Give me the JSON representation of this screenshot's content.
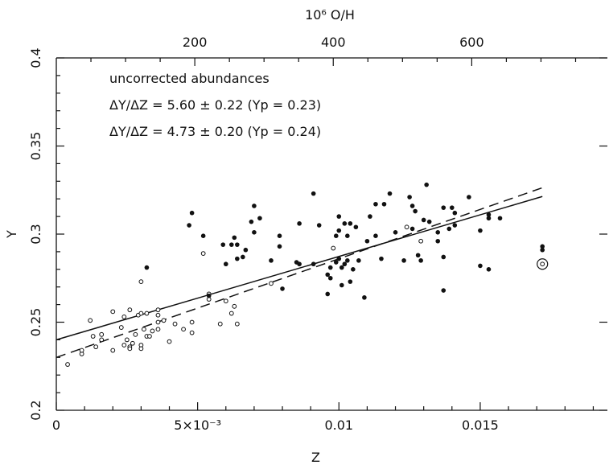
{
  "chart_data": {
    "type": "scatter",
    "xlabel": "Z",
    "ylabel": "Y",
    "top_xlabel": "10⁶ O/H",
    "xlim": [
      0,
      0.0195
    ],
    "ylim": [
      0.2,
      0.4
    ],
    "x_ticks": [
      {
        "value": 0,
        "label": "0"
      },
      {
        "value": 0.005,
        "label": "5×10⁻³"
      },
      {
        "value": 0.01,
        "label": "0.01"
      },
      {
        "value": 0.015,
        "label": "0.015"
      }
    ],
    "y_ticks": [
      {
        "value": 0.2,
        "label": "0.2"
      },
      {
        "value": 0.25,
        "label": "0.25"
      },
      {
        "value": 0.3,
        "label": "0.3"
      },
      {
        "value": 0.35,
        "label": "0.35"
      },
      {
        "value": 0.4,
        "label": "0.4"
      }
    ],
    "top_ticks": [
      {
        "value": 200,
        "label": "200"
      },
      {
        "value": 400,
        "label": "400"
      },
      {
        "value": 600,
        "label": "600"
      }
    ],
    "top_axis_z_per_unit": 2.45e-05,
    "annotations": [
      "uncorrected abundances",
      "ΔY/ΔZ = 5.60 ± 0.22  (Yp = 0.23)",
      "ΔY/ΔZ = 4.73 ± 0.20  (Yp = 0.24)"
    ],
    "fits": [
      {
        "style": "dashed",
        "slope": 5.6,
        "intercept": 0.23,
        "x_range": [
          0,
          0.0172
        ]
      },
      {
        "style": "solid",
        "slope": 4.73,
        "intercept": 0.24,
        "x_range": [
          0,
          0.0172
        ]
      }
    ],
    "series": [
      {
        "marker": "open-circle",
        "points": [
          [
            0.0004,
            0.226
          ],
          [
            0.0009,
            0.232
          ],
          [
            0.0009,
            0.234
          ],
          [
            0.0012,
            0.251
          ],
          [
            0.0013,
            0.242
          ],
          [
            0.0014,
            0.236
          ],
          [
            0.0016,
            0.24
          ],
          [
            0.0016,
            0.243
          ],
          [
            0.002,
            0.234
          ],
          [
            0.002,
            0.256
          ],
          [
            0.0023,
            0.247
          ],
          [
            0.0024,
            0.237
          ],
          [
            0.0024,
            0.253
          ],
          [
            0.0025,
            0.24
          ],
          [
            0.0026,
            0.257
          ],
          [
            0.0026,
            0.236
          ],
          [
            0.0027,
            0.238
          ],
          [
            0.0028,
            0.243
          ],
          [
            0.0029,
            0.254
          ],
          [
            0.003,
            0.255
          ],
          [
            0.003,
            0.237
          ],
          [
            0.003,
            0.235
          ],
          [
            0.0031,
            0.246
          ],
          [
            0.0032,
            0.242
          ],
          [
            0.0033,
            0.242
          ],
          [
            0.0034,
            0.245
          ],
          [
            0.0036,
            0.25
          ],
          [
            0.0036,
            0.246
          ],
          [
            0.0036,
            0.254
          ],
          [
            0.0036,
            0.257
          ],
          [
            0.003,
            0.273
          ],
          [
            0.0038,
            0.251
          ],
          [
            0.004,
            0.239
          ],
          [
            0.0042,
            0.249
          ],
          [
            0.0045,
            0.246
          ],
          [
            0.0048,
            0.25
          ],
          [
            0.0048,
            0.244
          ],
          [
            0.0052,
            0.289
          ],
          [
            0.0054,
            0.266
          ],
          [
            0.0054,
            0.263
          ],
          [
            0.0058,
            0.249
          ],
          [
            0.006,
            0.262
          ],
          [
            0.0062,
            0.255
          ],
          [
            0.0063,
            0.259
          ],
          [
            0.0064,
            0.249
          ],
          [
            0.0076,
            0.272
          ],
          [
            0.0098,
            0.292
          ],
          [
            0.0124,
            0.304
          ],
          [
            0.0129,
            0.296
          ],
          [
            0.0172,
            0.283
          ],
          [
            0.0032,
            0.255
          ],
          [
            0.0026,
            0.235
          ]
        ]
      },
      {
        "marker": "filled-circle",
        "points": [
          [
            0.0032,
            0.281
          ],
          [
            0.0047,
            0.305
          ],
          [
            0.0048,
            0.312
          ],
          [
            0.0052,
            0.299
          ],
          [
            0.0054,
            0.265
          ],
          [
            0.0059,
            0.294
          ],
          [
            0.006,
            0.283
          ],
          [
            0.0062,
            0.294
          ],
          [
            0.0063,
            0.298
          ],
          [
            0.0064,
            0.294
          ],
          [
            0.0064,
            0.286
          ],
          [
            0.0066,
            0.287
          ],
          [
            0.0067,
            0.291
          ],
          [
            0.0069,
            0.307
          ],
          [
            0.007,
            0.316
          ],
          [
            0.007,
            0.301
          ],
          [
            0.0072,
            0.309
          ],
          [
            0.0076,
            0.285
          ],
          [
            0.0079,
            0.299
          ],
          [
            0.0079,
            0.293
          ],
          [
            0.008,
            0.269
          ],
          [
            0.0085,
            0.284
          ],
          [
            0.0086,
            0.283
          ],
          [
            0.0086,
            0.306
          ],
          [
            0.0091,
            0.323
          ],
          [
            0.0091,
            0.283
          ],
          [
            0.0093,
            0.305
          ],
          [
            0.0096,
            0.266
          ],
          [
            0.0096,
            0.277
          ],
          [
            0.0097,
            0.281
          ],
          [
            0.0097,
            0.275
          ],
          [
            0.0099,
            0.284
          ],
          [
            0.0099,
            0.299
          ],
          [
            0.01,
            0.31
          ],
          [
            0.01,
            0.302
          ],
          [
            0.01,
            0.286
          ],
          [
            0.0101,
            0.271
          ],
          [
            0.0101,
            0.281
          ],
          [
            0.0102,
            0.306
          ],
          [
            0.0102,
            0.283
          ],
          [
            0.0103,
            0.299
          ],
          [
            0.0103,
            0.285
          ],
          [
            0.0104,
            0.306
          ],
          [
            0.0104,
            0.273
          ],
          [
            0.0105,
            0.28
          ],
          [
            0.0106,
            0.304
          ],
          [
            0.0107,
            0.285
          ],
          [
            0.0109,
            0.264
          ],
          [
            0.011,
            0.296
          ],
          [
            0.0111,
            0.31
          ],
          [
            0.0113,
            0.299
          ],
          [
            0.0113,
            0.317
          ],
          [
            0.0115,
            0.286
          ],
          [
            0.0116,
            0.317
          ],
          [
            0.0118,
            0.323
          ],
          [
            0.012,
            0.301
          ],
          [
            0.0123,
            0.285
          ],
          [
            0.0125,
            0.321
          ],
          [
            0.0126,
            0.316
          ],
          [
            0.0126,
            0.303
          ],
          [
            0.0127,
            0.313
          ],
          [
            0.0128,
            0.288
          ],
          [
            0.0129,
            0.285
          ],
          [
            0.013,
            0.308
          ],
          [
            0.0131,
            0.328
          ],
          [
            0.0132,
            0.307
          ],
          [
            0.0135,
            0.301
          ],
          [
            0.0137,
            0.315
          ],
          [
            0.0137,
            0.268
          ],
          [
            0.0137,
            0.287
          ],
          [
            0.0139,
            0.303
          ],
          [
            0.014,
            0.315
          ],
          [
            0.0141,
            0.312
          ],
          [
            0.0141,
            0.305
          ],
          [
            0.0146,
            0.321
          ],
          [
            0.015,
            0.302
          ],
          [
            0.015,
            0.282
          ],
          [
            0.0153,
            0.28
          ],
          [
            0.0153,
            0.309
          ],
          [
            0.0153,
            0.311
          ],
          [
            0.0157,
            0.309
          ],
          [
            0.0172,
            0.293
          ],
          [
            0.0172,
            0.291
          ],
          [
            0.0135,
            0.296
          ]
        ]
      }
    ]
  }
}
